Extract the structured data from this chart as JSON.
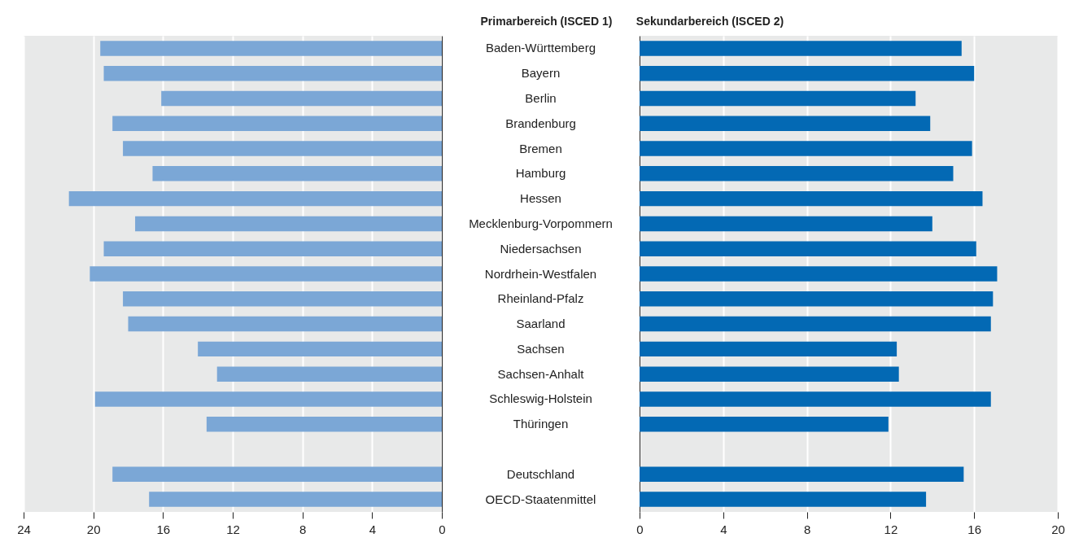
{
  "chart_data": [
    {
      "type": "bar",
      "orientation": "horizontal",
      "title": "Primarbereich (ISCED 1)",
      "categories": [
        "Baden-Württemberg",
        "Bayern",
        "Berlin",
        "Brandenburg",
        "Bremen",
        "Hamburg",
        "Hessen",
        "Mecklenburg-Vorpommern",
        "Niedersachsen",
        "Nordrhein-Westfalen",
        "Rheinland-Pfalz",
        "Saarland",
        "Sachsen",
        "Sachsen-Anhalt",
        "Schleswig-Holstein",
        "Thüringen",
        null,
        "Deutschland",
        "OECD-Staatenmittel"
      ],
      "values": [
        19.6,
        19.4,
        16.1,
        18.9,
        18.3,
        16.6,
        21.4,
        17.6,
        19.4,
        20.2,
        18.3,
        18.0,
        14.0,
        12.9,
        19.9,
        13.5,
        null,
        18.9,
        16.8
      ],
      "color": "#7ba7d6",
      "xlim": [
        24,
        0
      ],
      "xticks": [
        24,
        20,
        16,
        12,
        8,
        4,
        0
      ],
      "grid": "x"
    },
    {
      "type": "bar",
      "orientation": "horizontal",
      "title": "Sekundarbereich (ISCED 2)",
      "categories": [
        "Baden-Württemberg",
        "Bayern",
        "Berlin",
        "Brandenburg",
        "Bremen",
        "Hamburg",
        "Hessen",
        "Mecklenburg-Vorpommern",
        "Niedersachsen",
        "Nordrhein-Westfalen",
        "Rheinland-Pfalz",
        "Saarland",
        "Sachsen",
        "Sachsen-Anhalt",
        "Schleswig-Holstein",
        "Thüringen",
        null,
        "Deutschland",
        "OECD-Staatenmittel"
      ],
      "values": [
        15.4,
        16.0,
        13.2,
        13.9,
        15.9,
        15.0,
        16.4,
        14.0,
        16.1,
        17.1,
        16.9,
        16.8,
        12.3,
        12.4,
        16.8,
        11.9,
        null,
        15.5,
        13.7
      ],
      "color": "#0369b4",
      "xlim": [
        0,
        20
      ],
      "xticks": [
        0,
        4,
        8,
        12,
        16,
        20
      ],
      "grid": "x",
      "tick_labels": "x"
    }
  ]
}
